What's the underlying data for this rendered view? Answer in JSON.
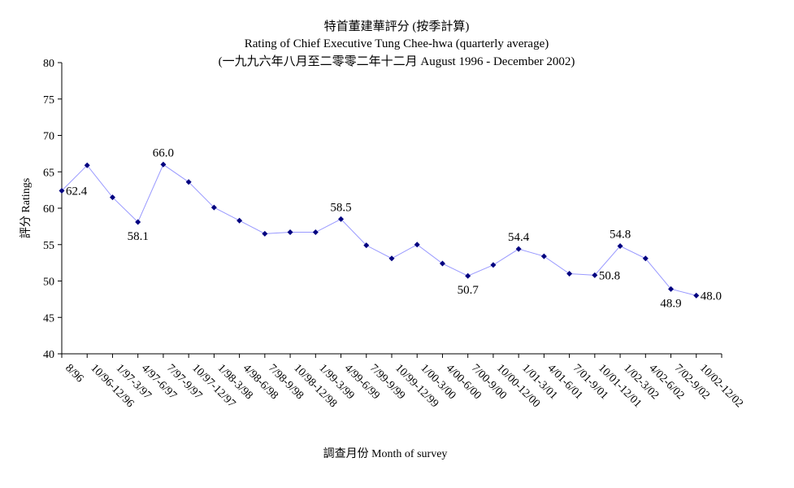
{
  "chart_data": {
    "type": "line",
    "title": "特首董建華評分 (按季計算)",
    "subtitle": "Rating of Chief Executive Tung Chee-hwa (quarterly average)",
    "subtitle2": "(一九九六年八月至二零零二年十二月 August 1996 -  December 2002)",
    "xlabel": "調查月份 Month of survey",
    "ylabel": "評分 Ratings",
    "ylim": [
      40,
      80
    ],
    "yticks": [
      40,
      45,
      50,
      55,
      60,
      65,
      70,
      75,
      80
    ],
    "grid": false,
    "legend": "none",
    "line_color": "#9999ff",
    "marker_color": "#000080",
    "categories": [
      "8/96",
      "10/96-12/96",
      "1/97-3/97",
      "4/97-6/97",
      "7/97-9/97",
      "10/97-12/97",
      "1/98-3/98",
      "4/98-6/98",
      "7/98-9/98",
      "10/98-12/98",
      "1/99-3/99",
      "4/99-6/99",
      "7/99-9/99",
      "10/99-12/99",
      "1/00-3/00",
      "4/00-6/00",
      "7/00-9/00",
      "10/00-12/00",
      "1/01-3/01",
      "4/01-6/01",
      "7/01-9/01",
      "10/01-12/01",
      "1/02-3/02",
      "4/02-6/02",
      "7/02-9/02",
      "10/02-12/02"
    ],
    "values": [
      62.4,
      65.9,
      61.5,
      58.1,
      66.0,
      63.6,
      60.1,
      58.3,
      56.5,
      56.7,
      56.7,
      58.5,
      54.9,
      53.1,
      55.0,
      52.4,
      50.7,
      52.2,
      54.4,
      53.4,
      51.0,
      50.8,
      54.8,
      53.1,
      48.9,
      48.0
    ],
    "data_labels": [
      {
        "index": 0,
        "text": "62.4",
        "pos": "right"
      },
      {
        "index": 3,
        "text": "58.1",
        "pos": "below"
      },
      {
        "index": 4,
        "text": "66.0",
        "pos": "above"
      },
      {
        "index": 11,
        "text": "58.5",
        "pos": "above"
      },
      {
        "index": 16,
        "text": "50.7",
        "pos": "below"
      },
      {
        "index": 18,
        "text": "54.4",
        "pos": "above"
      },
      {
        "index": 21,
        "text": "50.8",
        "pos": "right"
      },
      {
        "index": 22,
        "text": "54.8",
        "pos": "above"
      },
      {
        "index": 24,
        "text": "48.9",
        "pos": "below"
      },
      {
        "index": 25,
        "text": "48.0",
        "pos": "right"
      }
    ]
  }
}
